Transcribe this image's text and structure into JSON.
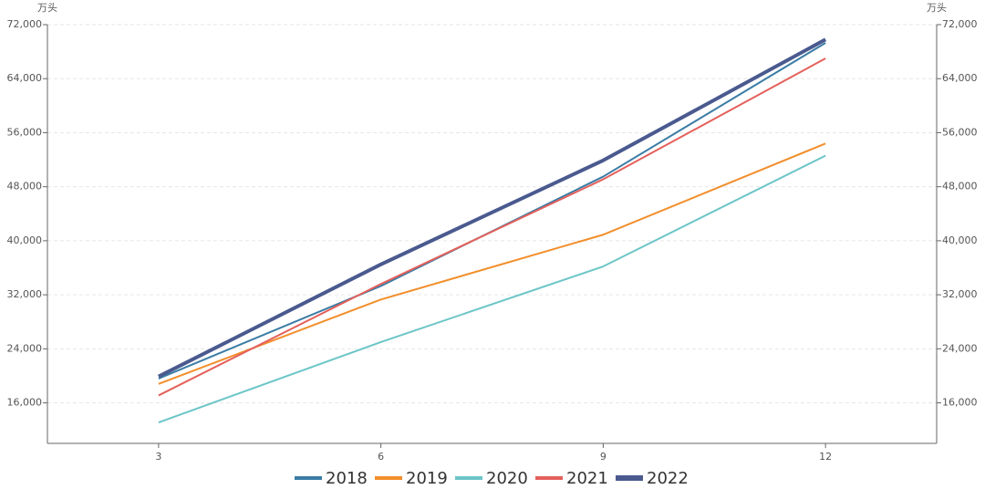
{
  "chart_data": {
    "type": "line",
    "y_axis_label": "万头",
    "y2_axis_label": "万头",
    "x": [
      3,
      6,
      9,
      12
    ],
    "xlim": [
      1.5,
      13.5
    ],
    "xticks": [
      3,
      6,
      9,
      12
    ],
    "ylim": [
      10000,
      72000
    ],
    "yticks": [
      {
        "value": 16000,
        "label": "16,000"
      },
      {
        "value": 24000,
        "label": "24,000"
      },
      {
        "value": 32000,
        "label": "32,000"
      },
      {
        "value": 40000,
        "label": "40,000"
      },
      {
        "value": 48000,
        "label": "48,000"
      },
      {
        "value": 56000,
        "label": "56,000"
      },
      {
        "value": 64000,
        "label": "64,000"
      },
      {
        "value": 72000,
        "label": "72,000"
      }
    ],
    "y2lim": [
      10000,
      72000
    ],
    "y2ticks": [
      {
        "value": 16000,
        "label": "16,000"
      },
      {
        "value": 24000,
        "label": "24,000"
      },
      {
        "value": 32000,
        "label": "32,000"
      },
      {
        "value": 40000,
        "label": "40,000"
      },
      {
        "value": 48000,
        "label": "48,000"
      },
      {
        "value": 56000,
        "label": "56,000"
      },
      {
        "value": 64000,
        "label": "64,000"
      },
      {
        "value": 72000,
        "label": "72,000"
      }
    ],
    "grid": true,
    "legend": "bottom",
    "series": [
      {
        "name": "2018",
        "color": "#3a7ca5",
        "width": 2,
        "values": [
          19600,
          33300,
          49500,
          69300
        ]
      },
      {
        "name": "2019",
        "color": "#f28e2b",
        "width": 2,
        "values": [
          18800,
          31300,
          40900,
          54400
        ]
      },
      {
        "name": "2020",
        "color": "#6cc5c7",
        "width": 2,
        "values": [
          13100,
          25000,
          36200,
          52600
        ]
      },
      {
        "name": "2021",
        "color": "#e4605b",
        "width": 2,
        "values": [
          17100,
          33600,
          49100,
          67000
        ]
      },
      {
        "name": "2022",
        "color": "#4a5a8f",
        "width": 4,
        "values": [
          19900,
          36500,
          51900,
          69800
        ]
      }
    ]
  }
}
